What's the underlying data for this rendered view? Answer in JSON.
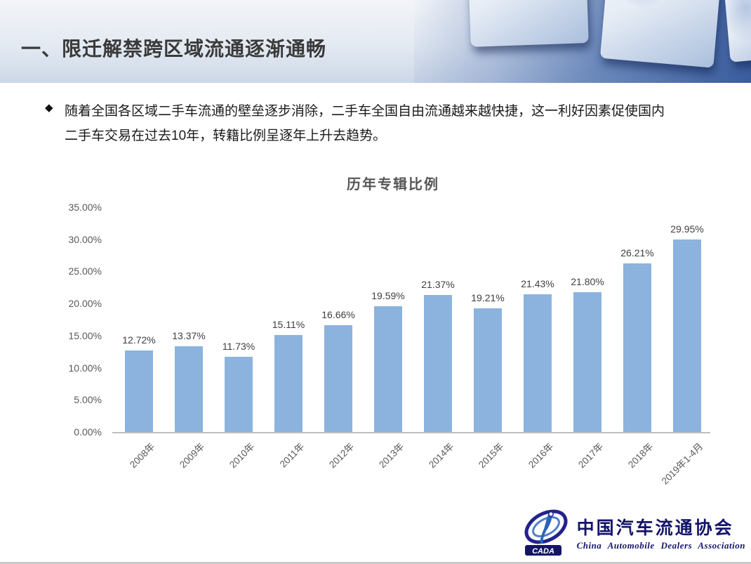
{
  "slide": {
    "title": "一、限迁解禁跨区域流通逐渐通畅",
    "bullet": {
      "marker": "◆",
      "lines": [
        "随着全国各区域二手车流通的壁垒逐步消除，二手车全国自由流通越来越快捷，这一利好因素促使国内",
        "二手车交易在过去10年，转籍比例呈逐年上升去趋势。"
      ]
    }
  },
  "chart_data": {
    "type": "bar",
    "title": "历年专辑比例",
    "categories": [
      "2008年",
      "2009年",
      "2010年",
      "2011年",
      "2012年",
      "2013年",
      "2014年",
      "2015年",
      "2016年",
      "2017年",
      "2018年",
      "2019年1-4月"
    ],
    "values": [
      12.72,
      13.37,
      11.73,
      15.11,
      16.66,
      19.59,
      21.37,
      19.21,
      21.43,
      21.8,
      26.21,
      29.95
    ],
    "data_labels": [
      "12.72%",
      "13.37%",
      "11.73%",
      "15.11%",
      "16.66%",
      "19.59%",
      "21.37%",
      "19.21%",
      "21.43%",
      "21.80%",
      "26.21%",
      "29.95%"
    ],
    "xlabel": "",
    "ylabel": "",
    "ylim": [
      0,
      35
    ],
    "y_ticks": [
      "35.00%",
      "30.00%",
      "25.00%",
      "20.00%",
      "15.00%",
      "10.00%",
      "5.00%",
      "0.00%"
    ],
    "grid": false,
    "legend": "none",
    "bar_color": "#8bb3de",
    "axis_color": "#bfbfbf"
  },
  "footer_logo": {
    "acronym": "CADA",
    "name_cn": "中国汽车流通协会",
    "name_en": "China Automobile Dealers Association"
  }
}
